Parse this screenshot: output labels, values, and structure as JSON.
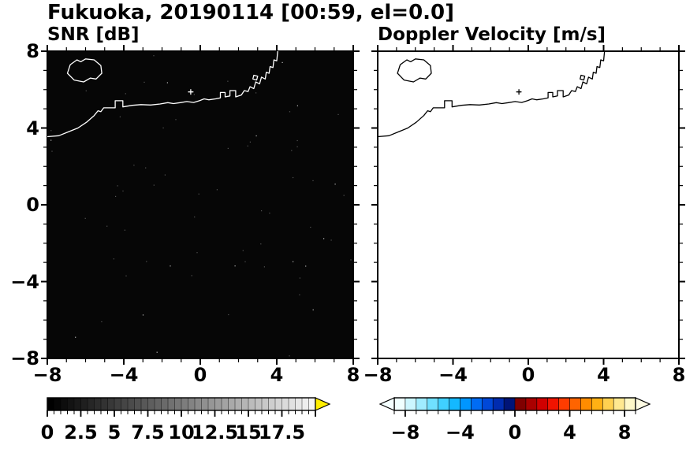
{
  "title": "Fukuoka, 20190114 [00:59, el=0.0]",
  "panels": [
    {
      "name": "snr",
      "title": "SNR [dB]",
      "bg": "#060606",
      "coast_color": "#ffffff"
    },
    {
      "name": "doppler",
      "title": "Doppler Velocity [m/s]",
      "bg": "#ffffff",
      "coast_color": "#000000"
    }
  ],
  "axes": {
    "xlim": [
      -8,
      8
    ],
    "ylim": [
      -8,
      8
    ],
    "major_ticks": [
      -8,
      -4,
      0,
      4,
      8
    ],
    "minor_step": 1,
    "xtick_labels": [
      "−8",
      "−4",
      "0",
      "4",
      "8"
    ],
    "ytick_labels": [
      "8",
      "4",
      "0",
      "−4",
      "−8"
    ]
  },
  "colorbars": [
    {
      "id": "snr",
      "range": [
        0,
        20
      ],
      "step": 0.5,
      "major_step": 2.5,
      "labels": [
        "0",
        "2.5",
        "5",
        "7.5",
        "10",
        "12.5",
        "15",
        "17.5"
      ],
      "label_values": [
        0,
        2.5,
        5,
        7.5,
        10,
        12.5,
        15,
        17.5
      ],
      "type": "grayscale",
      "over_arrow": "#ffee00"
    },
    {
      "id": "doppler",
      "range": [
        -8.8,
        8.8
      ],
      "step": 0.8,
      "labels": [
        "−8",
        "−4",
        "0",
        "4",
        "8"
      ],
      "label_values": [
        -8,
        -4,
        0,
        4,
        8
      ],
      "type": "steps",
      "colors": [
        "#f0ffff",
        "#ccf6ff",
        "#a0ecff",
        "#70e0ff",
        "#40d0ff",
        "#14b8ff",
        "#0096ff",
        "#006cf4",
        "#0048d8",
        "#002cb0",
        "#001478",
        "#800000",
        "#aa0000",
        "#d00000",
        "#f01400",
        "#ff3c00",
        "#ff6400",
        "#ff8c00",
        "#ffb014",
        "#ffd050",
        "#ffe890",
        "#fff8c8"
      ],
      "under_arrow": "#f4ffff",
      "over_arrow": "#fffce4"
    }
  ],
  "coastline": {
    "segments": [
      [
        [
          -6.95,
          6.85
        ],
        [
          -6.8,
          7.3
        ],
        [
          -6.45,
          7.55
        ],
        [
          -6.25,
          7.45
        ],
        [
          -6.0,
          7.6
        ],
        [
          -5.55,
          7.55
        ],
        [
          -5.2,
          7.25
        ],
        [
          -5.15,
          6.85
        ],
        [
          -5.45,
          6.55
        ],
        [
          -5.75,
          6.6
        ],
        [
          -6.1,
          6.4
        ],
        [
          -6.6,
          6.5
        ],
        [
          -6.95,
          6.85
        ]
      ],
      [
        [
          -8.0,
          3.55
        ],
        [
          -7.4,
          3.6
        ],
        [
          -6.9,
          3.8
        ],
        [
          -6.4,
          4.0
        ],
        [
          -5.95,
          4.3
        ],
        [
          -5.55,
          4.65
        ],
        [
          -5.35,
          4.9
        ],
        [
          -5.2,
          4.85
        ],
        [
          -5.05,
          5.05
        ],
        [
          -4.45,
          5.05
        ],
        [
          -4.45,
          5.42
        ],
        [
          -4.05,
          5.42
        ],
        [
          -4.05,
          5.1
        ],
        [
          -3.55,
          5.18
        ],
        [
          -3.1,
          5.22
        ],
        [
          -2.6,
          5.2
        ],
        [
          -2.1,
          5.25
        ],
        [
          -1.7,
          5.32
        ],
        [
          -1.4,
          5.27
        ],
        [
          -1.05,
          5.32
        ],
        [
          -0.7,
          5.38
        ],
        [
          -0.35,
          5.33
        ],
        [
          -0.05,
          5.42
        ],
        [
          0.2,
          5.52
        ],
        [
          0.45,
          5.47
        ],
        [
          0.8,
          5.52
        ],
        [
          1.05,
          5.57
        ],
        [
          1.05,
          5.85
        ],
        [
          1.3,
          5.85
        ],
        [
          1.3,
          5.62
        ],
        [
          1.55,
          5.67
        ],
        [
          1.55,
          5.95
        ],
        [
          1.85,
          5.95
        ],
        [
          1.85,
          5.62
        ],
        [
          2.15,
          5.72
        ],
        [
          2.3,
          5.95
        ],
        [
          2.5,
          5.9
        ],
        [
          2.6,
          6.15
        ],
        [
          2.8,
          6.05
        ],
        [
          2.9,
          6.4
        ],
        [
          3.1,
          6.3
        ],
        [
          3.2,
          6.65
        ],
        [
          3.4,
          6.55
        ],
        [
          3.45,
          6.9
        ],
        [
          3.6,
          6.85
        ],
        [
          3.65,
          7.2
        ],
        [
          3.8,
          7.15
        ],
        [
          3.85,
          7.55
        ],
        [
          4.0,
          7.5
        ],
        [
          4.05,
          8.0
        ]
      ],
      [
        [
          -0.62,
          5.88
        ],
        [
          -0.38,
          5.88
        ]
      ],
      [
        [
          -0.5,
          5.76
        ],
        [
          -0.5,
          6.0
        ]
      ],
      [
        [
          2.75,
          6.55
        ],
        [
          2.95,
          6.5
        ],
        [
          3.0,
          6.7
        ],
        [
          2.8,
          6.75
        ],
        [
          2.75,
          6.55
        ]
      ]
    ]
  },
  "chart_data": [
    {
      "type": "heatmap",
      "title": "SNR [dB]",
      "xlabel": "",
      "ylabel": "",
      "xlim": [
        -8,
        8
      ],
      "ylim": [
        -8,
        8
      ],
      "xticks": [
        -8,
        -4,
        0,
        4,
        8
      ],
      "yticks": [
        -8,
        -4,
        0,
        4,
        8
      ],
      "values_summary": "uniform ≈ 0 dB over entire domain (black field, no radar echo) with sparse speckle noise",
      "colorbar": {
        "min": 0,
        "max": 20,
        "tick_values": [
          0,
          2.5,
          5,
          7.5,
          10,
          12.5,
          15,
          17.5
        ],
        "colormap": "grayscale black to white",
        "over_arrow_color": "#ffee00"
      },
      "overlay": "Hakata Bay (Fukuoka) coastline drawn in white"
    },
    {
      "type": "heatmap",
      "title": "Doppler Velocity [m/s]",
      "xlabel": "",
      "ylabel": "",
      "xlim": [
        -8,
        8
      ],
      "ylim": [
        -8,
        8
      ],
      "xticks": [
        -8,
        -4,
        0,
        4,
        8
      ],
      "yticks": [
        -8,
        -4,
        0,
        4,
        8
      ],
      "values_summary": "no echo — blank white field",
      "colorbar": {
        "min": -8.8,
        "max": 8.8,
        "tick_values": [
          -8,
          -4,
          0,
          4,
          8
        ],
        "colormap": "pale cyan → blue → navy | dark red → red → orange → pale yellow",
        "arrow_ends": "both"
      },
      "overlay": "Hakata Bay (Fukuoka) coastline drawn in black"
    }
  ]
}
